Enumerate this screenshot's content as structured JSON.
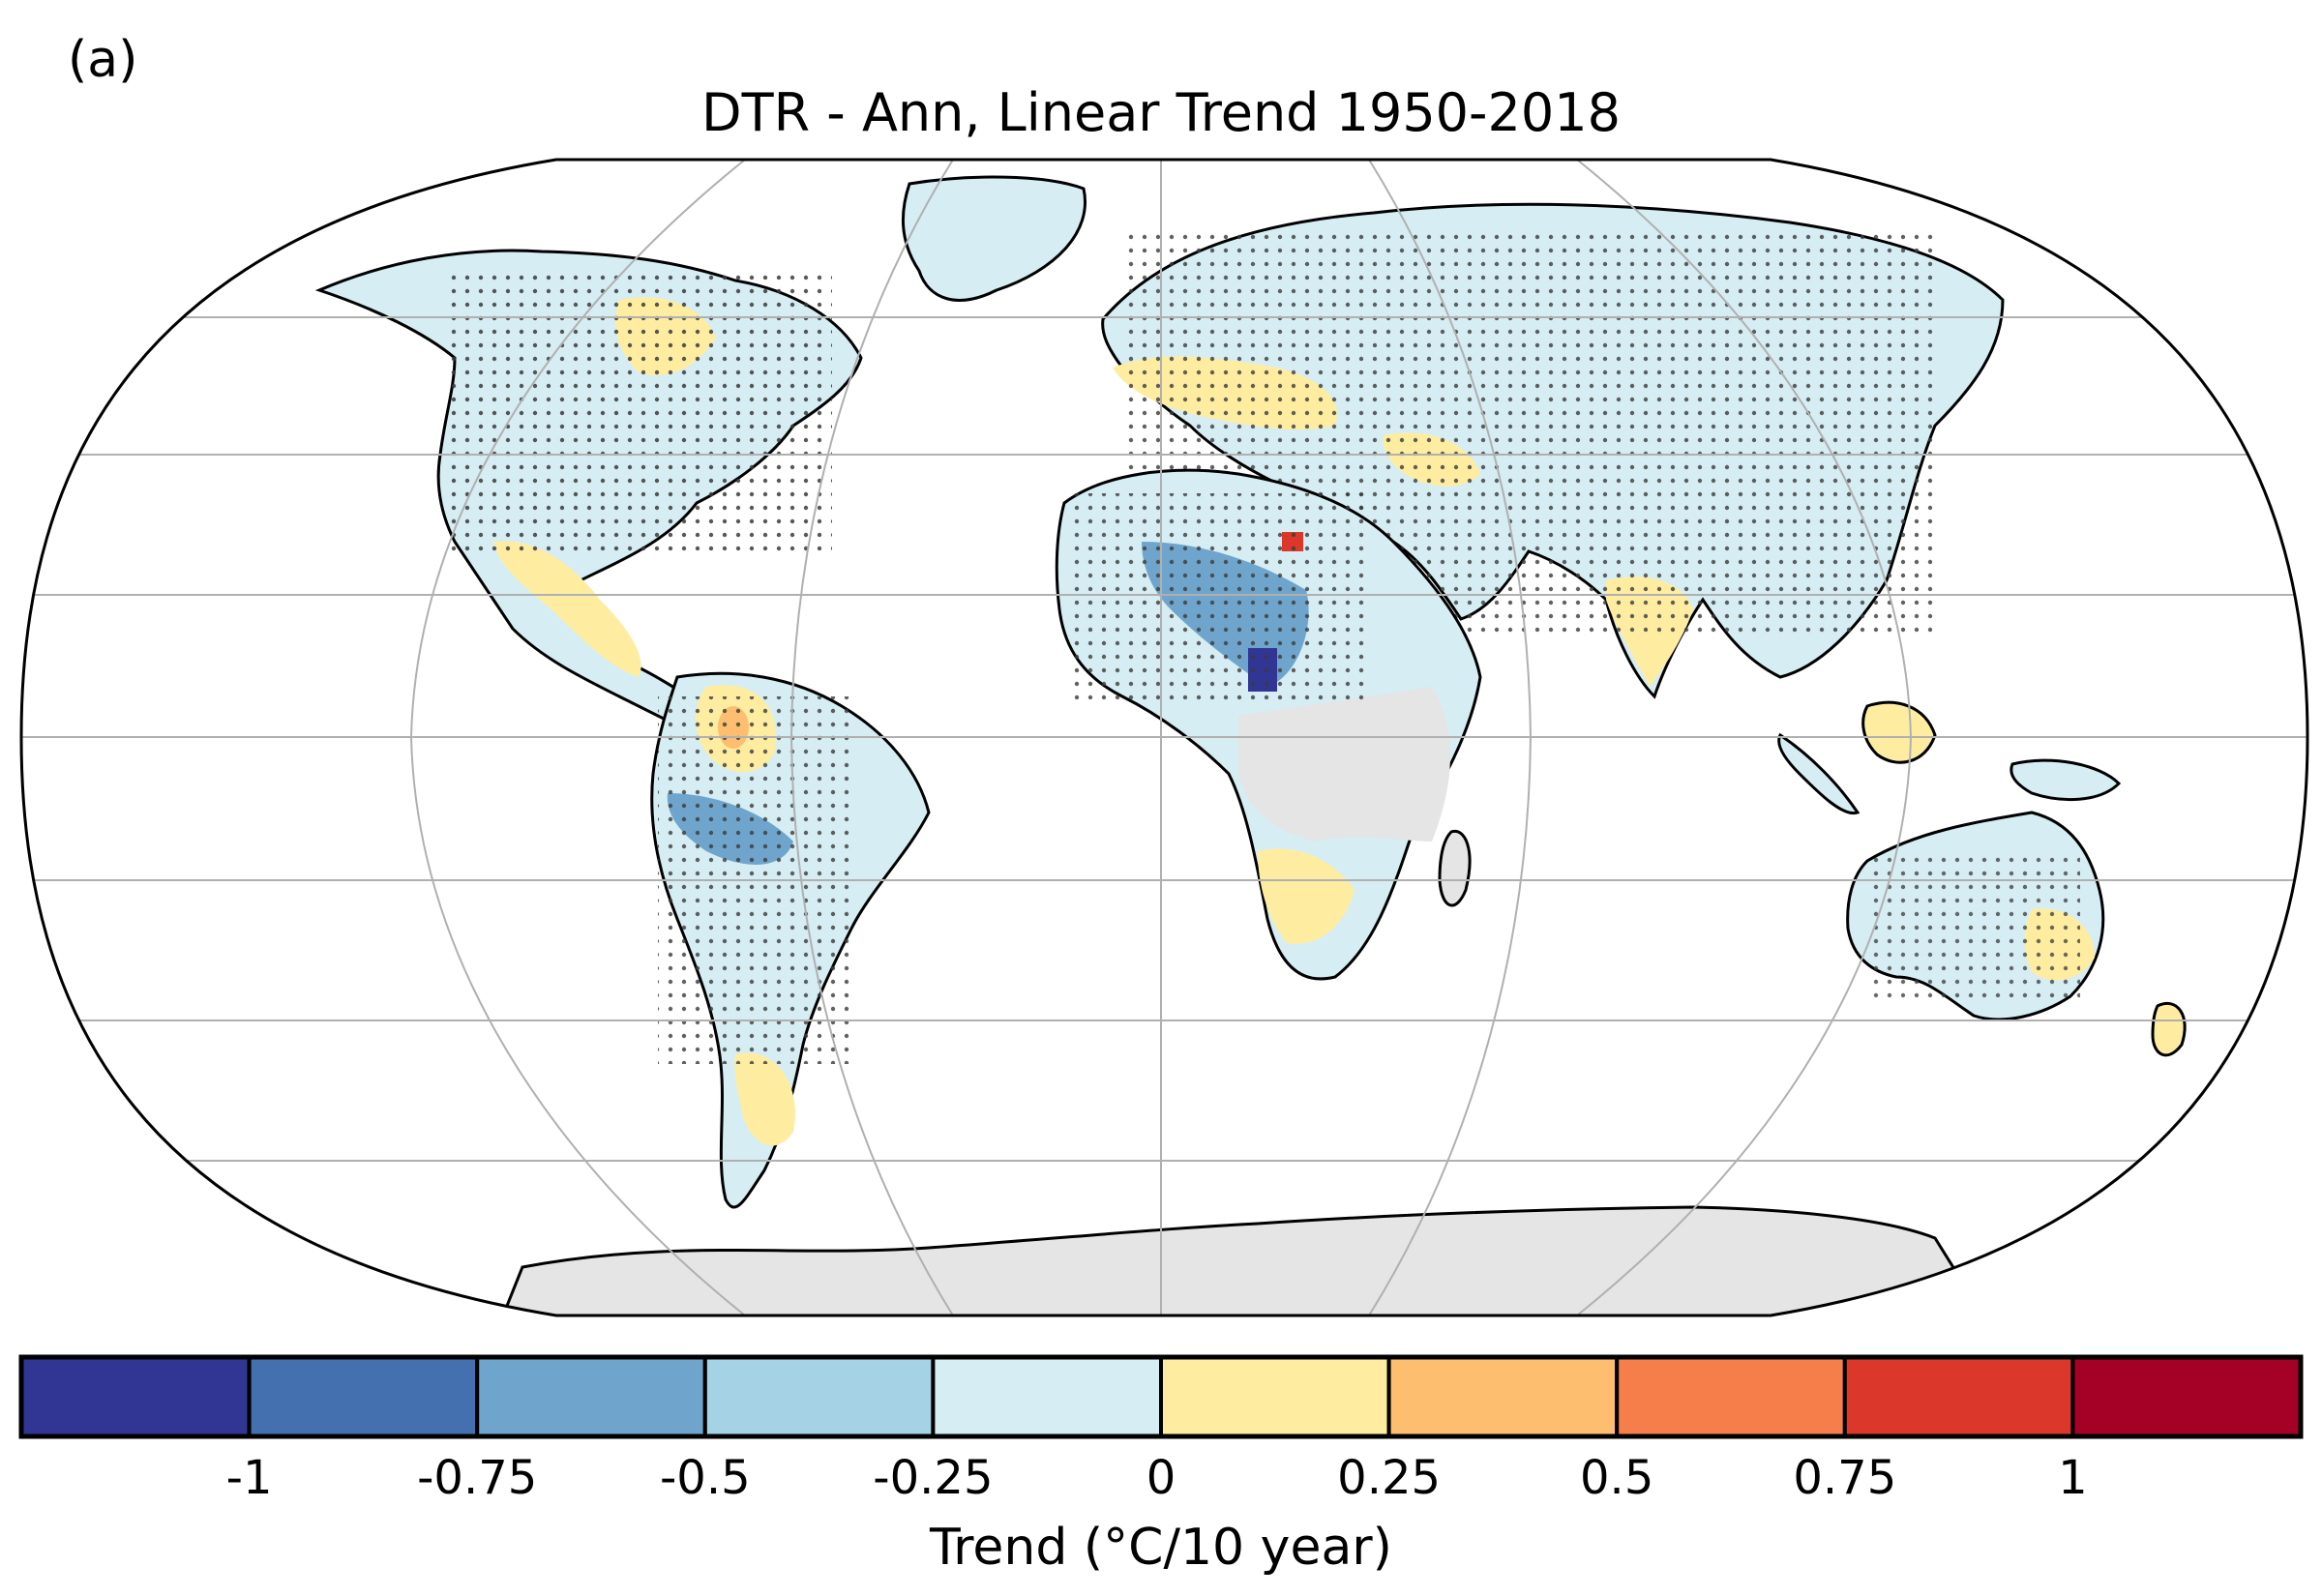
{
  "panel_label": "(a)",
  "title": "DTR - Ann, Linear Trend 1950-2018",
  "colorbar": {
    "label": "Trend (°C/10 year)",
    "ticks": [
      "-1",
      "-0.75",
      "-0.5",
      "-0.25",
      "0",
      "0.25",
      "0.5",
      "0.75",
      "1"
    ],
    "bins": [
      {
        "range": "< -1",
        "color": "#313695"
      },
      {
        "range": "-1 to -0.75",
        "color": "#4470b0"
      },
      {
        "range": "-0.75 to -0.5",
        "color": "#6fa5cc"
      },
      {
        "range": "-0.5 to -0.25",
        "color": "#a5d3e5"
      },
      {
        "range": "-0.25 to 0",
        "color": "#d6edf3"
      },
      {
        "range": "0 to 0.25",
        "color": "#feeda1"
      },
      {
        "range": "0.25 to 0.5",
        "color": "#fdbf6f"
      },
      {
        "range": "0.5 to 0.75",
        "color": "#f67e4b"
      },
      {
        "range": "0.75 to 1",
        "color": "#db382b"
      },
      {
        "range": "> 1",
        "color": "#a50026"
      }
    ]
  },
  "map": {
    "projection": "Robinson",
    "missing_color": "#e5e5e5",
    "graticule_color": "#b0b0b0",
    "coastline_color": "#000000",
    "stippling": "significant trend"
  }
}
